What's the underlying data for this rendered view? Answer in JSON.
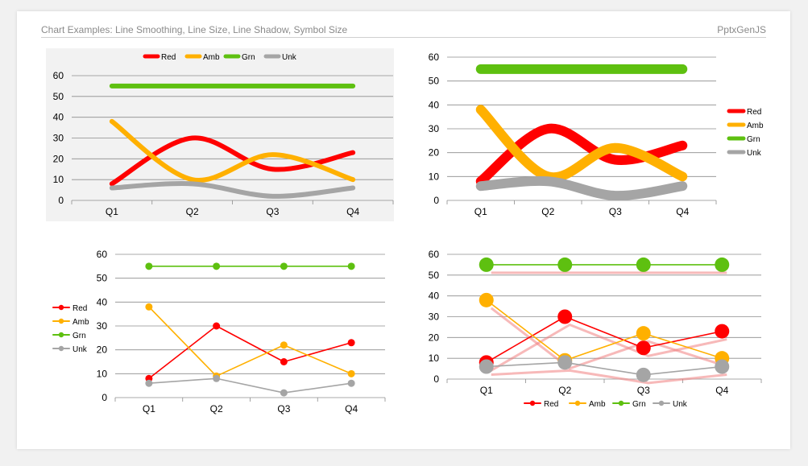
{
  "header": {
    "title": "Chart Examples: Line Smoothing, Line Size, Line Shadow, Symbol Size",
    "brand": "PptxGenJS"
  },
  "colors": {
    "Red": "#ff0000",
    "Amb": "#ffb000",
    "Grn": "#5ec010",
    "Unk": "#a5a5a5",
    "plot_bg_chart1": "#f2f2f2",
    "gridline": "#8c8c8c",
    "shadow": "#f08080"
  },
  "chart_data": [
    {
      "type": "line",
      "smooth": true,
      "line_size": "thick",
      "categories": [
        "Q1",
        "Q2",
        "Q3",
        "Q4"
      ],
      "series": [
        {
          "name": "Red",
          "values": [
            8,
            30,
            15,
            23
          ]
        },
        {
          "name": "Amb",
          "values": [
            38,
            10,
            22,
            10
          ]
        },
        {
          "name": "Grn",
          "values": [
            55,
            55,
            55,
            55
          ]
        },
        {
          "name": "Unk",
          "values": [
            6,
            8,
            2,
            6
          ]
        }
      ],
      "ylim": [
        0,
        60
      ],
      "yticks": [
        "0",
        "10",
        "20",
        "30",
        "40",
        "50",
        "60"
      ],
      "grid": true,
      "legend": "top",
      "background": "light-gray"
    },
    {
      "type": "line",
      "smooth": true,
      "line_size": "very thick",
      "categories": [
        "Q1",
        "Q2",
        "Q3",
        "Q4"
      ],
      "series": [
        {
          "name": "Red",
          "values": [
            8,
            30,
            17,
            23
          ]
        },
        {
          "name": "Amb",
          "values": [
            38,
            10,
            22,
            10
          ]
        },
        {
          "name": "Grn",
          "values": [
            55,
            55,
            55,
            55
          ]
        },
        {
          "name": "Unk",
          "values": [
            6,
            8,
            2,
            6
          ]
        }
      ],
      "ylim": [
        0,
        60
      ],
      "yticks": [
        "0",
        "10",
        "20",
        "30",
        "40",
        "50",
        "60"
      ],
      "grid": true,
      "legend": "right"
    },
    {
      "type": "line",
      "smooth": false,
      "line_size": "thin",
      "categories": [
        "Q1",
        "Q2",
        "Q3",
        "Q4"
      ],
      "series": [
        {
          "name": "Red",
          "values": [
            8,
            30,
            15,
            23
          ]
        },
        {
          "name": "Amb",
          "values": [
            38,
            9,
            22,
            10
          ]
        },
        {
          "name": "Grn",
          "values": [
            55,
            55,
            55,
            55
          ]
        },
        {
          "name": "Unk",
          "values": [
            6,
            8,
            2,
            6
          ]
        }
      ],
      "ylim": [
        0,
        60
      ],
      "yticks": [
        "0",
        "10",
        "20",
        "30",
        "40",
        "50",
        "60"
      ],
      "grid": true,
      "legend": "left"
    },
    {
      "type": "line",
      "smooth": false,
      "line_size": "thin",
      "symbol_size": "large",
      "shadow": true,
      "categories": [
        "Q1",
        "Q2",
        "Q3",
        "Q4"
      ],
      "series": [
        {
          "name": "Red",
          "values": [
            8,
            30,
            15,
            23
          ]
        },
        {
          "name": "Amb",
          "values": [
            38,
            9,
            22,
            10
          ]
        },
        {
          "name": "Grn",
          "values": [
            55,
            55,
            55,
            55
          ]
        },
        {
          "name": "Unk",
          "values": [
            6,
            8,
            2,
            6
          ]
        }
      ],
      "ylim": [
        0,
        60
      ],
      "yticks": [
        "0",
        "10",
        "20",
        "30",
        "40",
        "50",
        "60"
      ],
      "grid": true,
      "legend": "bottom"
    }
  ]
}
